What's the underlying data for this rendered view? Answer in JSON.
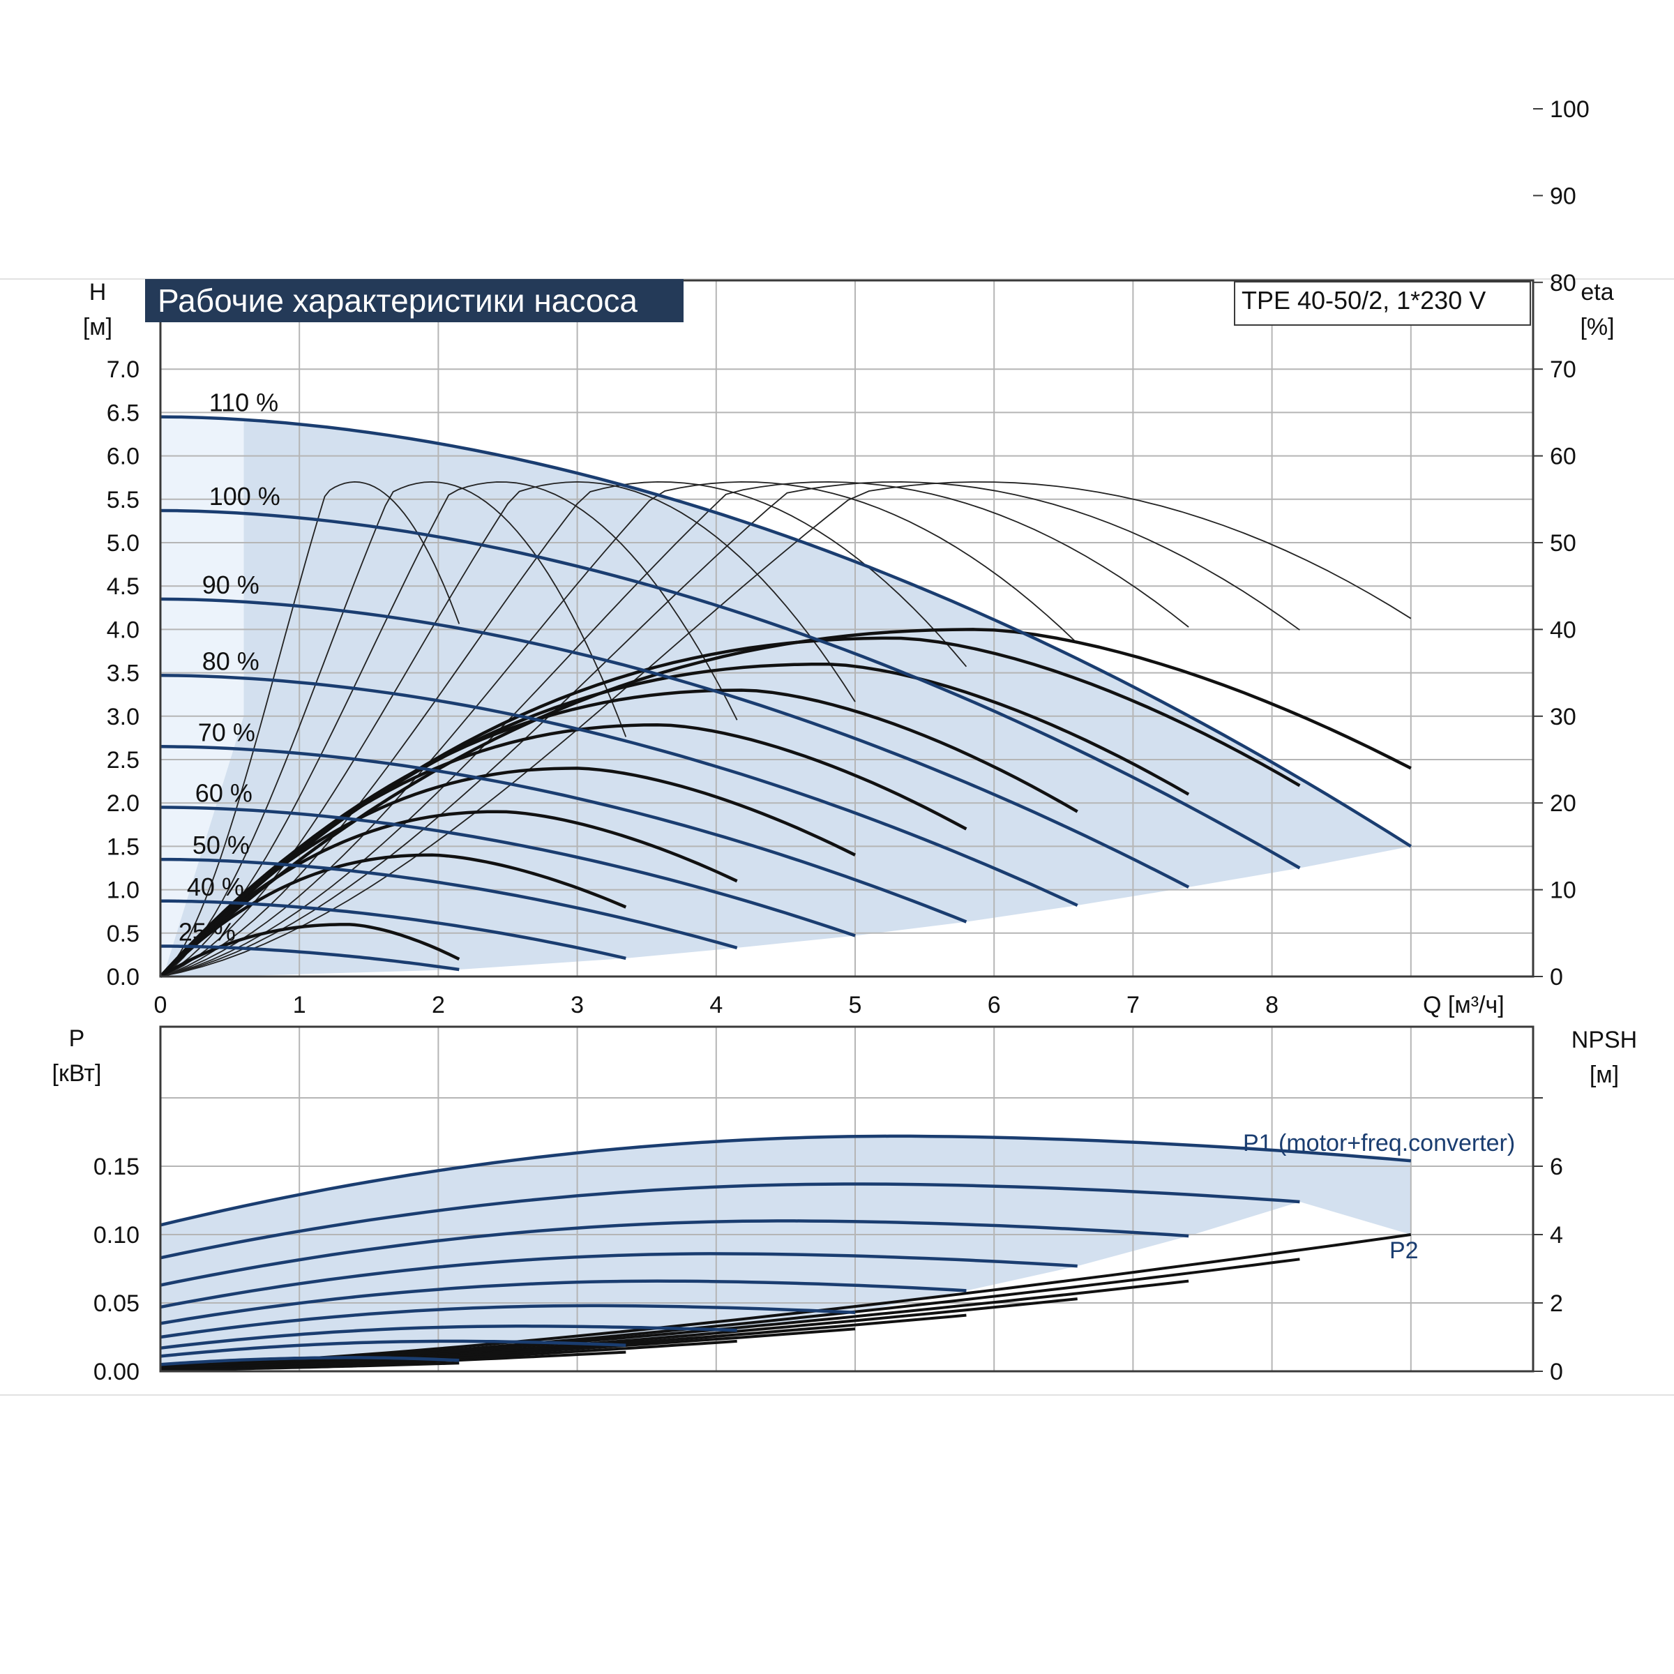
{
  "chart_data": [
    {
      "type": "line",
      "title": "Рабочие характеристики насоса",
      "model_label": "TPE 40-50/2, 1*230 V",
      "xlabel": "Q [м³/ч]",
      "ylabel": {
        "name": "H",
        "unit": "[м]"
      },
      "y2label": {
        "name": "eta",
        "unit": "[%]"
      },
      "xlim": [
        0,
        9.8
      ],
      "ylim": [
        0,
        7.5
      ],
      "y2lim": [
        0,
        110
      ],
      "xticks": [
        "0",
        "1",
        "2",
        "3",
        "4",
        "5",
        "6",
        "7",
        "8"
      ],
      "yticks": [
        "0.0",
        "0.5",
        "1.0",
        "1.5",
        "2.0",
        "2.5",
        "3.0",
        "3.5",
        "4.0",
        "4.5",
        "5.0",
        "5.5",
        "6.0",
        "6.5",
        "7.0"
      ],
      "y2ticks": [
        "0",
        "10",
        "20",
        "30",
        "40",
        "50",
        "60",
        "70",
        "80",
        "90",
        "100"
      ],
      "grid": true,
      "colors": {
        "head": "#1a3d70",
        "efficiency": "#111111",
        "region": "#d3e0ef",
        "region_light": "#ecf3fb"
      },
      "head_curves": [
        {
          "name": "110 %",
          "h0": 6.45,
          "qmax": 9.0,
          "hend": 1.5
        },
        {
          "name": "100 %",
          "h0": 5.37,
          "qmax": 8.2,
          "hend": 1.25
        },
        {
          "name": "90 %",
          "h0": 4.35,
          "qmax": 7.4,
          "hend": 1.03
        },
        {
          "name": "80 %",
          "h0": 3.47,
          "qmax": 6.6,
          "hend": 0.82
        },
        {
          "name": "70 %",
          "h0": 2.65,
          "qmax": 5.8,
          "hend": 0.63
        },
        {
          "name": "60 %",
          "h0": 1.95,
          "qmax": 5.0,
          "hend": 0.47
        },
        {
          "name": "50 %",
          "h0": 1.35,
          "qmax": 4.15,
          "hend": 0.33
        },
        {
          "name": "40 %",
          "h0": 0.87,
          "qmax": 3.35,
          "hend": 0.21
        },
        {
          "name": "25 %",
          "h0": 0.35,
          "qmax": 2.15,
          "hend": 0.08
        }
      ],
      "efficiency_curves": [
        {
          "qmax": 9.0,
          "peak_q": 5.9,
          "peak": 40,
          "end": 24
        },
        {
          "qmax": 8.2,
          "peak_q": 5.3,
          "peak": 39,
          "end": 22
        },
        {
          "qmax": 7.4,
          "peak_q": 4.8,
          "peak": 36,
          "end": 21
        },
        {
          "qmax": 6.6,
          "peak_q": 4.2,
          "peak": 33,
          "end": 19
        },
        {
          "qmax": 5.8,
          "peak_q": 3.6,
          "peak": 29,
          "end": 17
        },
        {
          "qmax": 5.0,
          "peak_q": 3.0,
          "peak": 24,
          "end": 14
        },
        {
          "qmax": 4.15,
          "peak_q": 2.45,
          "peak": 19,
          "end": 11
        },
        {
          "qmax": 3.35,
          "peak_q": 1.95,
          "peak": 14,
          "end": 8
        },
        {
          "qmax": 2.15,
          "peak_q": 1.35,
          "peak": 6,
          "end": 2
        }
      ],
      "efficiency_arcs": [
        {
          "qmax": 9.0,
          "peak_q": 5.9
        },
        {
          "qmax": 8.2,
          "peak_q": 5.3
        },
        {
          "qmax": 7.4,
          "peak_q": 4.8
        },
        {
          "qmax": 6.6,
          "peak_q": 4.2
        },
        {
          "qmax": 5.8,
          "peak_q": 3.6
        },
        {
          "qmax": 5.0,
          "peak_q": 3.0
        },
        {
          "qmax": 4.15,
          "peak_q": 2.45
        },
        {
          "qmax": 3.35,
          "peak_q": 1.95
        },
        {
          "qmax": 2.15,
          "peak_q": 1.4
        }
      ],
      "efficiency_arc_peak": 57
    },
    {
      "type": "line",
      "ylabel": {
        "name": "P",
        "unit": "[кВт]"
      },
      "y2label": {
        "name": "NPSH",
        "unit": "[м]"
      },
      "xlim": [
        0,
        9.8
      ],
      "ylim": [
        0,
        0.2
      ],
      "y2lim": [
        0,
        8
      ],
      "yticks": [
        "0.00",
        "0.05",
        "0.10",
        "0.15"
      ],
      "y2ticks": [
        "0",
        "2",
        "4",
        "6"
      ],
      "grid": true,
      "p1_label": "P1 (motor+freq.converter)",
      "p2_label": "P2",
      "p1_curves": [
        {
          "qmax": 9.0,
          "p0": 0.107,
          "peak_q": 5.3,
          "peak": 0.172,
          "end": 0.154
        },
        {
          "qmax": 8.2,
          "p0": 0.083,
          "peak_q": 5.0,
          "peak": 0.137,
          "end": 0.124
        },
        {
          "qmax": 7.4,
          "p0": 0.063,
          "peak_q": 4.5,
          "peak": 0.11,
          "end": 0.099
        },
        {
          "qmax": 6.6,
          "p0": 0.047,
          "peak_q": 4.0,
          "peak": 0.086,
          "end": 0.077
        },
        {
          "qmax": 5.8,
          "p0": 0.035,
          "peak_q": 3.6,
          "peak": 0.066,
          "end": 0.059
        },
        {
          "qmax": 5.0,
          "p0": 0.025,
          "peak_q": 3.1,
          "peak": 0.048,
          "end": 0.043
        },
        {
          "qmax": 4.15,
          "p0": 0.017,
          "peak_q": 2.6,
          "peak": 0.033,
          "end": 0.03
        },
        {
          "qmax": 3.35,
          "p0": 0.011,
          "peak_q": 2.1,
          "peak": 0.022,
          "end": 0.019
        },
        {
          "qmax": 2.15,
          "p0": 0.005,
          "peak_q": 1.4,
          "peak": 0.01,
          "end": 0.008
        }
      ],
      "p2_curves": [
        {
          "qmax": 9.0,
          "p0": 0.004,
          "end": 0.1
        },
        {
          "qmax": 8.2,
          "p0": 0.003,
          "end": 0.082
        },
        {
          "qmax": 7.4,
          "p0": 0.003,
          "end": 0.066
        },
        {
          "qmax": 6.6,
          "p0": 0.002,
          "end": 0.053
        },
        {
          "qmax": 5.8,
          "p0": 0.002,
          "end": 0.041
        },
        {
          "qmax": 5.0,
          "p0": 0.002,
          "end": 0.031
        },
        {
          "qmax": 4.15,
          "p0": 0.001,
          "end": 0.022
        },
        {
          "qmax": 3.35,
          "p0": 0.001,
          "end": 0.014
        },
        {
          "qmax": 2.15,
          "p0": 0.001,
          "end": 0.006
        }
      ]
    }
  ]
}
